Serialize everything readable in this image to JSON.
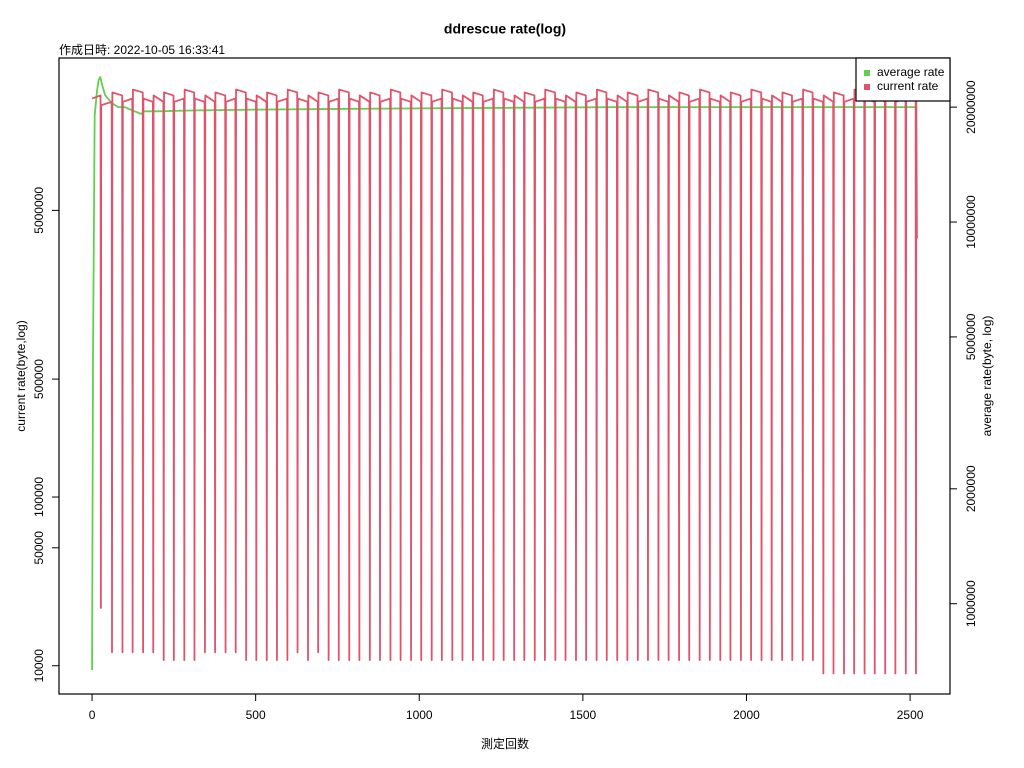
{
  "chart_data": {
    "type": "line",
    "title": "ddrescue rate(log)",
    "subtitle": "作成日時: 2022-10-05 16:33:41",
    "x_label": "測定回数",
    "y_label": "current rate(byte,log)",
    "y2_label": "average rate(byte, log)",
    "y_label_color": "#DF536B",
    "y2_label_color": "#61D04F",
    "xlim": [
      -101,
      2622
    ],
    "xticks": [
      0,
      500,
      1000,
      1500,
      2000,
      2500
    ],
    "ylim": [
      6800,
      40000000
    ],
    "yticks": [
      10000,
      50000,
      100000,
      500000,
      5000000
    ],
    "ylog": true,
    "y2lim": [
      580000,
      26900000
    ],
    "y2ticks": [
      1000000,
      2000000,
      5000000,
      10000000,
      20000000
    ],
    "y2log": true,
    "legend": "top-right",
    "series": [
      {
        "name": "average rate",
        "color": "#61D04F",
        "axis": "y2",
        "x": [
          0,
          3,
          8,
          15,
          20,
          25,
          30,
          40,
          50,
          60,
          80,
          100,
          130,
          150,
          160,
          200,
          300,
          500,
          800,
          1200,
          1600,
          2000,
          2400,
          2521
        ],
        "values": [
          670000,
          4500000,
          19000000,
          22000000,
          23500000,
          24000000,
          23000000,
          21500000,
          21000000,
          20500000,
          20000000,
          20000000,
          19500000,
          19200000,
          19500000,
          19500000,
          19600000,
          19700000,
          19800000,
          19900000,
          20000000,
          20000000,
          20000000,
          20000000
        ]
      },
      {
        "name": "current rate",
        "color": "#DF536B",
        "x": [
          0,
          26,
          27,
          28,
          60,
          61,
          62,
          92,
          93,
          94,
          123,
          124,
          125,
          155,
          156,
          157,
          186,
          187,
          188,
          218,
          219,
          220,
          249,
          250,
          251,
          281,
          282,
          283,
          312,
          313,
          314,
          344,
          345,
          346,
          375,
          376,
          377,
          407,
          408,
          409,
          438,
          439,
          440,
          470,
          471,
          472,
          501,
          502,
          503,
          533,
          534,
          535,
          564,
          565,
          566,
          596,
          597,
          598,
          627,
          628,
          629,
          659,
          660,
          661,
          690,
          691,
          692,
          722,
          723,
          724,
          753,
          754,
          755,
          785,
          786,
          787,
          816,
          817,
          818,
          848,
          849,
          850,
          879,
          880,
          881,
          911,
          912,
          913,
          942,
          943,
          944,
          974,
          975,
          976,
          1005,
          1006,
          1007,
          1037,
          1038,
          1039,
          1068,
          1069,
          1070,
          1100,
          1101,
          1102,
          1131,
          1132,
          1133,
          1163,
          1164,
          1165,
          1194,
          1195,
          1196,
          1226,
          1227,
          1228,
          1257,
          1258,
          1259,
          1289,
          1290,
          1291,
          1320,
          1321,
          1322,
          1352,
          1353,
          1354,
          1383,
          1384,
          1385,
          1415,
          1416,
          1417,
          1446,
          1447,
          1448,
          1478,
          1479,
          1480,
          1509,
          1510,
          1511,
          1541,
          1542,
          1543,
          1572,
          1573,
          1574,
          1604,
          1605,
          1606,
          1635,
          1636,
          1637,
          1667,
          1668,
          1669,
          1698,
          1699,
          1700,
          1730,
          1731,
          1732,
          1761,
          1762,
          1763,
          1793,
          1794,
          1795,
          1824,
          1825,
          1826,
          1856,
          1857,
          1858,
          1887,
          1888,
          1889,
          1919,
          1920,
          1921,
          1950,
          1951,
          1952,
          1982,
          1983,
          1984,
          2013,
          2014,
          2015,
          2045,
          2046,
          2047,
          2076,
          2077,
          2078,
          2108,
          2109,
          2110,
          2139,
          2140,
          2141,
          2171,
          2172,
          2173,
          2202,
          2203,
          2204,
          2234,
          2235,
          2236,
          2265,
          2266,
          2267,
          2297,
          2298,
          2299,
          2328,
          2329,
          2330,
          2360,
          2361,
          2362,
          2391,
          2392,
          2393,
          2423,
          2424,
          2425,
          2454,
          2455,
          2456,
          2486,
          2487,
          2488,
          2517,
          2518,
          2519,
          2521
        ],
        "values": [
          23000000,
          24000000.0,
          22000.0,
          21000000.0,
          22000000.0,
          12000.0,
          25000000.0,
          24000000.0,
          12000.0,
          22000000.0,
          23000000.0,
          12000.0,
          26000000.0,
          25000000.0,
          12000.0,
          23000000.0,
          22000000.0,
          12000.0,
          24000000.0,
          22000000.0,
          10800.0,
          25000000.0,
          24000000.0,
          10800.0,
          22000000.0,
          23000000.0,
          10800.0,
          26000000.0,
          25000000.0,
          10800.0,
          23000000.0,
          22000000.0,
          12000.0,
          24000000.0,
          22000000.0,
          12000.0,
          25000000.0,
          24000000.0,
          12000.0,
          22000000.0,
          23000000.0,
          12000.0,
          26000000.0,
          25000000.0,
          10800.0,
          23000000.0,
          22000000.0,
          10800.0,
          24000000.0,
          22000000.0,
          10800.0,
          25000000.0,
          24000000.0,
          10800.0,
          22000000.0,
          23000000.0,
          10800.0,
          26000000.0,
          25000000.0,
          12000.0,
          23000000.0,
          22000000.0,
          10800.0,
          24000000.0,
          22000000.0,
          12000.0,
          25000000.0,
          24000000.0,
          10800.0,
          22000000.0,
          23000000.0,
          10800.0,
          26000000.0,
          25000000.0,
          10800.0,
          23000000.0,
          22000000.0,
          10800.0,
          24000000.0,
          22000000.0,
          10800.0,
          25000000.0,
          24000000.0,
          10800.0,
          22000000.0,
          23000000.0,
          10800.0,
          26000000.0,
          25000000.0,
          10800.0,
          23000000.0,
          22000000.0,
          10800.0,
          24000000.0,
          22000000.0,
          10800.0,
          25000000.0,
          24000000.0,
          10800.0,
          22000000.0,
          23000000.0,
          10800.0,
          26000000.0,
          25000000.0,
          10800.0,
          23000000.0,
          22000000.0,
          10800.0,
          24000000.0,
          22000000.0,
          10800.0,
          25000000.0,
          24000000.0,
          10800.0,
          22000000.0,
          23000000.0,
          10800.0,
          26000000.0,
          25000000.0,
          10800.0,
          23000000.0,
          22000000.0,
          10800.0,
          24000000.0,
          22000000.0,
          10800.0,
          25000000.0,
          24000000.0,
          10800.0,
          22000000.0,
          23000000.0,
          10800.0,
          26000000.0,
          25000000.0,
          10800.0,
          23000000.0,
          22000000.0,
          10800.0,
          24000000.0,
          22000000.0,
          10800.0,
          25000000.0,
          24000000.0,
          10800.0,
          22000000.0,
          23000000.0,
          10800.0,
          26000000.0,
          25000000.0,
          10800.0,
          23000000.0,
          22000000.0,
          10800.0,
          24000000.0,
          22000000.0,
          10800.0,
          25000000.0,
          24000000.0,
          10800.0,
          22000000.0,
          23000000.0,
          10800.0,
          26000000.0,
          25000000.0,
          10800.0,
          23000000.0,
          22000000.0,
          10800.0,
          24000000.0,
          22000000.0,
          10800.0,
          25000000.0,
          24000000.0,
          10800.0,
          22000000.0,
          23000000.0,
          10800.0,
          26000000.0,
          25000000.0,
          10800.0,
          23000000.0,
          22000000.0,
          10800.0,
          24000000.0,
          22000000.0,
          10800.0,
          25000000.0,
          24000000.0,
          10800.0,
          22000000.0,
          23000000.0,
          10800.0,
          26000000.0,
          25000000.0,
          10800.0,
          23000000.0,
          22000000.0,
          10800.0,
          24000000.0,
          22000000.0,
          10800.0,
          25000000.0,
          24000000.0,
          10800.0,
          22000000.0,
          23000000.0,
          10800.0,
          26000000.0,
          25000000.0,
          10800.0,
          23000000.0,
          22000000.0,
          9000.0,
          24000000.0,
          22000000.0,
          9000.0,
          25000000.0,
          24000000.0,
          9000.0,
          22000000.0,
          23000000.0,
          9000.0,
          26000000.0,
          25000000.0,
          9000.0,
          23000000.0,
          22000000.0,
          9000.0,
          24000000.0,
          22000000.0,
          9000.0,
          25000000.0,
          24000000.0,
          9000.0,
          22000000.0,
          23000000.0,
          9000.0,
          26000000.0,
          25000000.0,
          9000.0,
          23000000.0,
          3400000
        ]
      }
    ]
  }
}
